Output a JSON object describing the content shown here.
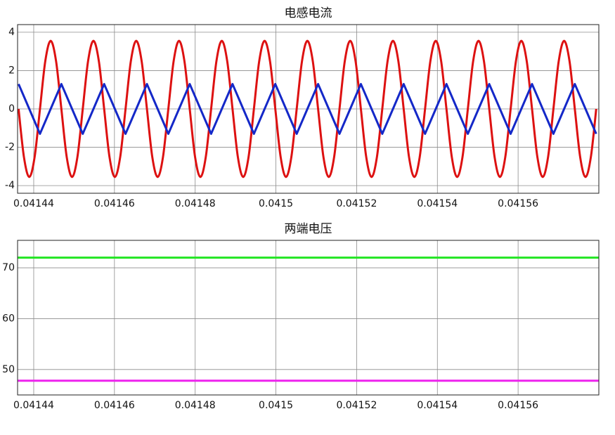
{
  "chart_data": [
    {
      "type": "line",
      "title": "电感电流",
      "x": [
        0.04143625,
        0.041437575,
        0.0414389,
        0.041440225,
        0.04144155,
        0.041442875,
        0.0414442,
        0.041445525,
        0.04144685,
        0.041448175,
        0.0414495,
        0.041450825,
        0.04145215,
        0.041453475,
        0.0414548,
        0.041456125,
        0.04145745,
        0.041458775,
        0.0414601,
        0.041461425,
        0.04146275,
        0.041464075,
        0.0414654,
        0.041466725,
        0.04146805,
        0.041469375,
        0.0414707,
        0.041472025,
        0.04147335,
        0.041474675,
        0.041476,
        0.041477325,
        0.04147865,
        0.041479975,
        0.0414813,
        0.041482625,
        0.04148395,
        0.041485275,
        0.0414866,
        0.041487925,
        0.04148925,
        0.041490575,
        0.0414919,
        0.041493225,
        0.04149455,
        0.041495875,
        0.0414972,
        0.041498525,
        0.04149985,
        0.041501175,
        0.0415025,
        0.041503825,
        0.04150515,
        0.041506475,
        0.0415078,
        0.041509125,
        0.04151045,
        0.041511775,
        0.0415131,
        0.041514425,
        0.04151575,
        0.041517075,
        0.0415184,
        0.041519725,
        0.04152105,
        0.041522375,
        0.0415237,
        0.041525025,
        0.04152635,
        0.041527675,
        0.041529,
        0.041530325,
        0.04153165,
        0.041532975,
        0.0415343,
        0.041535625,
        0.04153695,
        0.041538275,
        0.0415396,
        0.041540925,
        0.04154225,
        0.041543575,
        0.0415449,
        0.041546225,
        0.04154755,
        0.041548875,
        0.0415502,
        0.041551525,
        0.04155285,
        0.041554175,
        0.0415555,
        0.041556825,
        0.04155815,
        0.041559475,
        0.0415608,
        0.041562125,
        0.04156345,
        0.041564775,
        0.0415661,
        0.041567425,
        0.04156875,
        0.041570075,
        0.0415714,
        0.041572725,
        0.04157405,
        0.041575375,
        0.0415767,
        0.041578025,
        0.04157935
      ],
      "series": [
        {
          "color": "#dd1111",
          "smooth": true,
          "values": [
            0,
            -2.51,
            -3.55,
            -2.51,
            0,
            2.51,
            3.55,
            2.51,
            0,
            -2.51,
            -3.55,
            -2.51,
            0,
            2.51,
            3.55,
            2.51,
            0,
            -2.51,
            -3.55,
            -2.51,
            0,
            2.51,
            3.55,
            2.51,
            0,
            -2.51,
            -3.55,
            -2.51,
            0,
            2.51,
            3.55,
            2.51,
            0,
            -2.51,
            -3.55,
            -2.51,
            0,
            2.51,
            3.55,
            2.51,
            0,
            -2.51,
            -3.55,
            -2.51,
            0,
            2.51,
            3.55,
            2.51,
            0,
            -2.51,
            -3.55,
            -2.51,
            0,
            2.51,
            3.55,
            2.51,
            0,
            -2.51,
            -3.55,
            -2.51,
            0,
            2.51,
            3.55,
            2.51,
            0,
            -2.51,
            -3.55,
            -2.51,
            0,
            2.51,
            3.55,
            2.51,
            0,
            -2.51,
            -3.55,
            -2.51,
            0,
            2.51,
            3.55,
            2.51,
            0,
            -2.51,
            -3.55,
            -2.51,
            0,
            2.51,
            3.55,
            2.51,
            0,
            -2.51,
            -3.55,
            -2.51,
            0,
            2.51,
            3.55,
            2.51,
            0,
            -2.51,
            -3.55,
            -2.51,
            0,
            2.51,
            3.55,
            2.51,
            0,
            -2.51,
            -3.55,
            -2.51,
            0
          ]
        },
        {
          "color": "#1428c8",
          "smooth": false,
          "values": [
            1.3,
            0.65,
            0,
            -0.65,
            -1.3,
            -0.65,
            0,
            0.65,
            1.3,
            0.65,
            0,
            -0.65,
            -1.3,
            -0.65,
            0,
            0.65,
            1.3,
            0.65,
            0,
            -0.65,
            -1.3,
            -0.65,
            0,
            0.65,
            1.3,
            0.65,
            0,
            -0.65,
            -1.3,
            -0.65,
            0,
            0.65,
            1.3,
            0.65,
            0,
            -0.65,
            -1.3,
            -0.65,
            0,
            0.65,
            1.3,
            0.65,
            0,
            -0.65,
            -1.3,
            -0.65,
            0,
            0.65,
            1.3,
            0.65,
            0,
            -0.65,
            -1.3,
            -0.65,
            0,
            0.65,
            1.3,
            0.65,
            0,
            -0.65,
            -1.3,
            -0.65,
            0,
            0.65,
            1.3,
            0.65,
            0,
            -0.65,
            -1.3,
            -0.65,
            0,
            0.65,
            1.3,
            0.65,
            0,
            -0.65,
            -1.3,
            -0.65,
            0,
            0.65,
            1.3,
            0.65,
            0,
            -0.65,
            -1.3,
            -0.65,
            0,
            0.65,
            1.3,
            0.65,
            0,
            -0.65,
            -1.3,
            -0.65,
            0,
            0.65,
            1.3,
            0.65,
            0,
            -0.65,
            -1.3,
            -0.65,
            0,
            0.65,
            1.3,
            0.65,
            0,
            -0.65,
            -1.3
          ]
        }
      ],
      "xlim": [
        0.041436,
        0.04158
      ],
      "xticks": [
        0.04144,
        0.04146,
        0.04148,
        0.0415,
        0.04152,
        0.04154,
        0.04156
      ],
      "ylim": [
        -4.4,
        4.4
      ],
      "yticks": [
        -4,
        -2,
        0,
        2,
        4
      ],
      "grid": true
    },
    {
      "type": "line",
      "title": "两端电压",
      "x": [
        0.041436,
        0.04158
      ],
      "series": [
        {
          "color": "#22e622",
          "smooth": false,
          "values": [
            72,
            72
          ]
        },
        {
          "color": "#ee22ee",
          "smooth": false,
          "values": [
            47.8,
            47.8
          ]
        }
      ],
      "xlim": [
        0.041436,
        0.04158
      ],
      "xticks": [
        0.04144,
        0.04146,
        0.04148,
        0.0415,
        0.04152,
        0.04154,
        0.04156
      ],
      "ylim": [
        45,
        75.4
      ],
      "yticks": [
        50,
        60,
        70
      ],
      "grid": true
    }
  ]
}
